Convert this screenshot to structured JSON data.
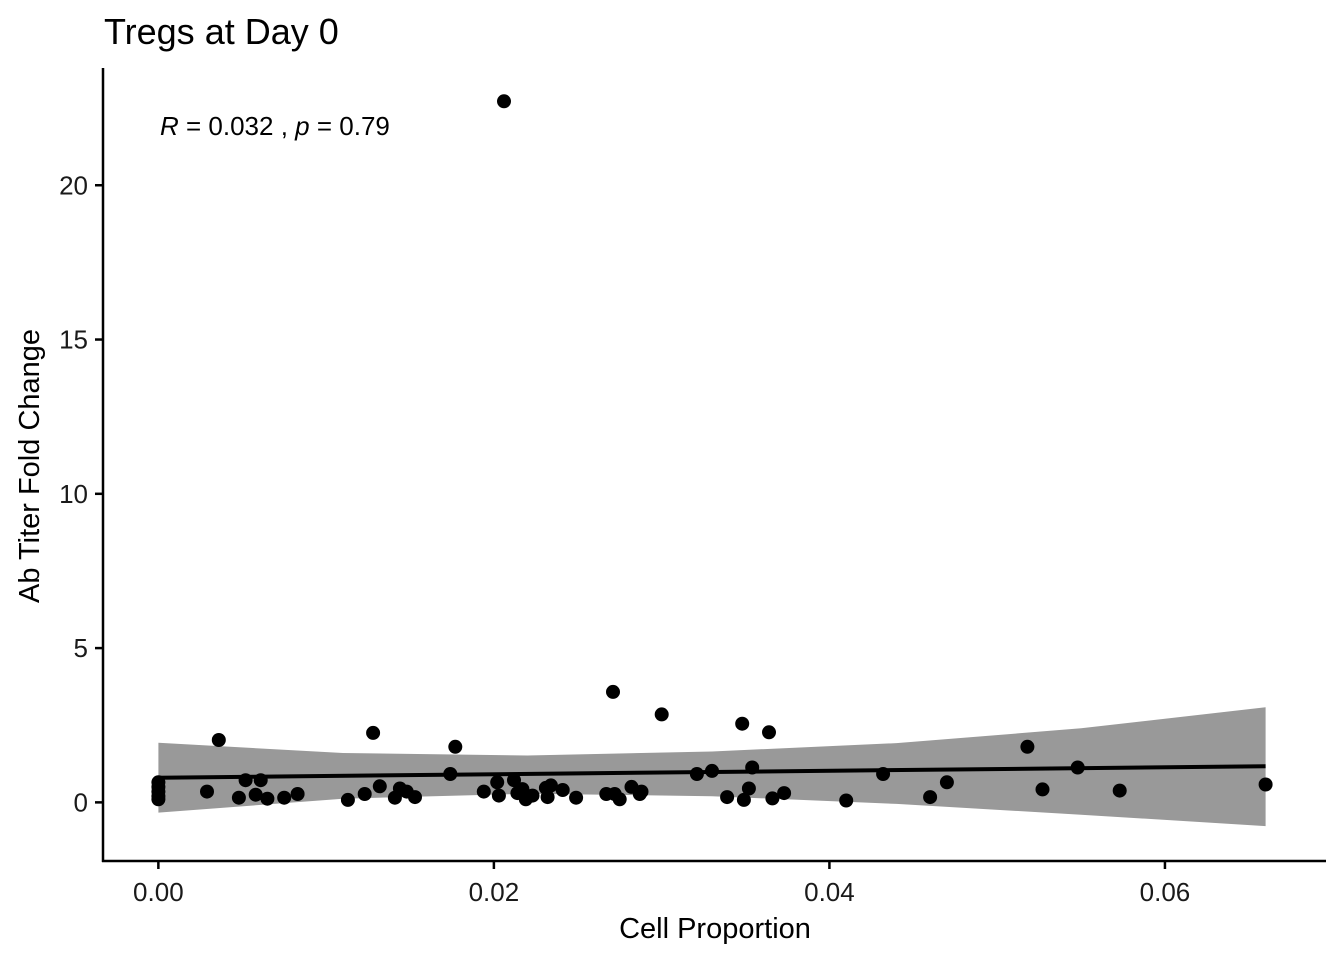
{
  "chart_data": {
    "type": "scatter",
    "title": "Tregs at Day 0",
    "xlabel": "Cell Proportion",
    "ylabel": "Ab Titer Fold Change",
    "xlim": [
      -0.0033,
      0.0696
    ],
    "ylim": [
      -1.9,
      23.8
    ],
    "x_ticks": [
      0,
      0.02,
      0.04,
      0.06
    ],
    "x_tick_labels": [
      "0.00",
      "0.02",
      "0.04",
      "0.06"
    ],
    "y_ticks": [
      0,
      5,
      10,
      15,
      20
    ],
    "y_tick_labels": [
      "0",
      "5",
      "10",
      "15",
      "20"
    ],
    "grid": false,
    "annotation": {
      "r_symbol": "R",
      "r_text": " = 0.032 , ",
      "p_symbol": "p",
      "p_text": " = 0.79"
    },
    "regression": {
      "x": [
        0,
        0.066
      ],
      "y": [
        0.8,
        1.17
      ],
      "ci_x": [
        0,
        0.011,
        0.022,
        0.033,
        0.044,
        0.055,
        0.066
      ],
      "ci_lower": [
        -0.33,
        0.12,
        0.28,
        0.2,
        -0.05,
        -0.4,
        -0.77
      ],
      "ci_upper": [
        1.93,
        1.6,
        1.52,
        1.65,
        1.92,
        2.4,
        3.08
      ]
    },
    "colors": {
      "points": "#000000",
      "line": "#000000",
      "band": "#999999",
      "axis": "#000000"
    },
    "points": [
      {
        "x": 0.0,
        "y": 0.65
      },
      {
        "x": 0.0,
        "y": 0.5
      },
      {
        "x": 0.0,
        "y": 0.35
      },
      {
        "x": 0.0,
        "y": 0.2
      },
      {
        "x": 0.0,
        "y": 0.1
      },
      {
        "x": 0.0029,
        "y": 0.35
      },
      {
        "x": 0.0036,
        "y": 2.02
      },
      {
        "x": 0.0048,
        "y": 0.15
      },
      {
        "x": 0.0052,
        "y": 0.72
      },
      {
        "x": 0.0058,
        "y": 0.25
      },
      {
        "x": 0.0061,
        "y": 0.72
      },
      {
        "x": 0.0065,
        "y": 0.12
      },
      {
        "x": 0.0075,
        "y": 0.15
      },
      {
        "x": 0.0083,
        "y": 0.27
      },
      {
        "x": 0.0113,
        "y": 0.08
      },
      {
        "x": 0.0123,
        "y": 0.27
      },
      {
        "x": 0.0128,
        "y": 2.25
      },
      {
        "x": 0.0132,
        "y": 0.52
      },
      {
        "x": 0.0141,
        "y": 0.15
      },
      {
        "x": 0.0144,
        "y": 0.45
      },
      {
        "x": 0.0148,
        "y": 0.35
      },
      {
        "x": 0.0153,
        "y": 0.17
      },
      {
        "x": 0.0174,
        "y": 0.92
      },
      {
        "x": 0.0177,
        "y": 1.8
      },
      {
        "x": 0.0194,
        "y": 0.35
      },
      {
        "x": 0.0202,
        "y": 0.65
      },
      {
        "x": 0.0203,
        "y": 0.22
      },
      {
        "x": 0.0206,
        "y": 22.72
      },
      {
        "x": 0.0212,
        "y": 0.72
      },
      {
        "x": 0.0214,
        "y": 0.3
      },
      {
        "x": 0.0217,
        "y": 0.43
      },
      {
        "x": 0.0219,
        "y": 0.1
      },
      {
        "x": 0.0223,
        "y": 0.22
      },
      {
        "x": 0.0231,
        "y": 0.47
      },
      {
        "x": 0.0232,
        "y": 0.17
      },
      {
        "x": 0.0234,
        "y": 0.55
      },
      {
        "x": 0.0241,
        "y": 0.4
      },
      {
        "x": 0.0249,
        "y": 0.15
      },
      {
        "x": 0.0267,
        "y": 0.27
      },
      {
        "x": 0.0271,
        "y": 3.58
      },
      {
        "x": 0.0272,
        "y": 0.27
      },
      {
        "x": 0.0275,
        "y": 0.1
      },
      {
        "x": 0.0282,
        "y": 0.5
      },
      {
        "x": 0.0287,
        "y": 0.27
      },
      {
        "x": 0.0288,
        "y": 0.35
      },
      {
        "x": 0.03,
        "y": 2.85
      },
      {
        "x": 0.0321,
        "y": 0.92
      },
      {
        "x": 0.033,
        "y": 1.02
      },
      {
        "x": 0.0339,
        "y": 0.17
      },
      {
        "x": 0.0348,
        "y": 2.55
      },
      {
        "x": 0.0349,
        "y": 0.08
      },
      {
        "x": 0.0352,
        "y": 0.45
      },
      {
        "x": 0.0354,
        "y": 1.13
      },
      {
        "x": 0.0364,
        "y": 2.27
      },
      {
        "x": 0.0366,
        "y": 0.13
      },
      {
        "x": 0.0373,
        "y": 0.3
      },
      {
        "x": 0.041,
        "y": 0.06
      },
      {
        "x": 0.0432,
        "y": 0.92
      },
      {
        "x": 0.046,
        "y": 0.17
      },
      {
        "x": 0.047,
        "y": 0.65
      },
      {
        "x": 0.0518,
        "y": 1.8
      },
      {
        "x": 0.0527,
        "y": 0.42
      },
      {
        "x": 0.0548,
        "y": 1.13
      },
      {
        "x": 0.0573,
        "y": 0.38
      },
      {
        "x": 0.066,
        "y": 0.58
      }
    ]
  }
}
